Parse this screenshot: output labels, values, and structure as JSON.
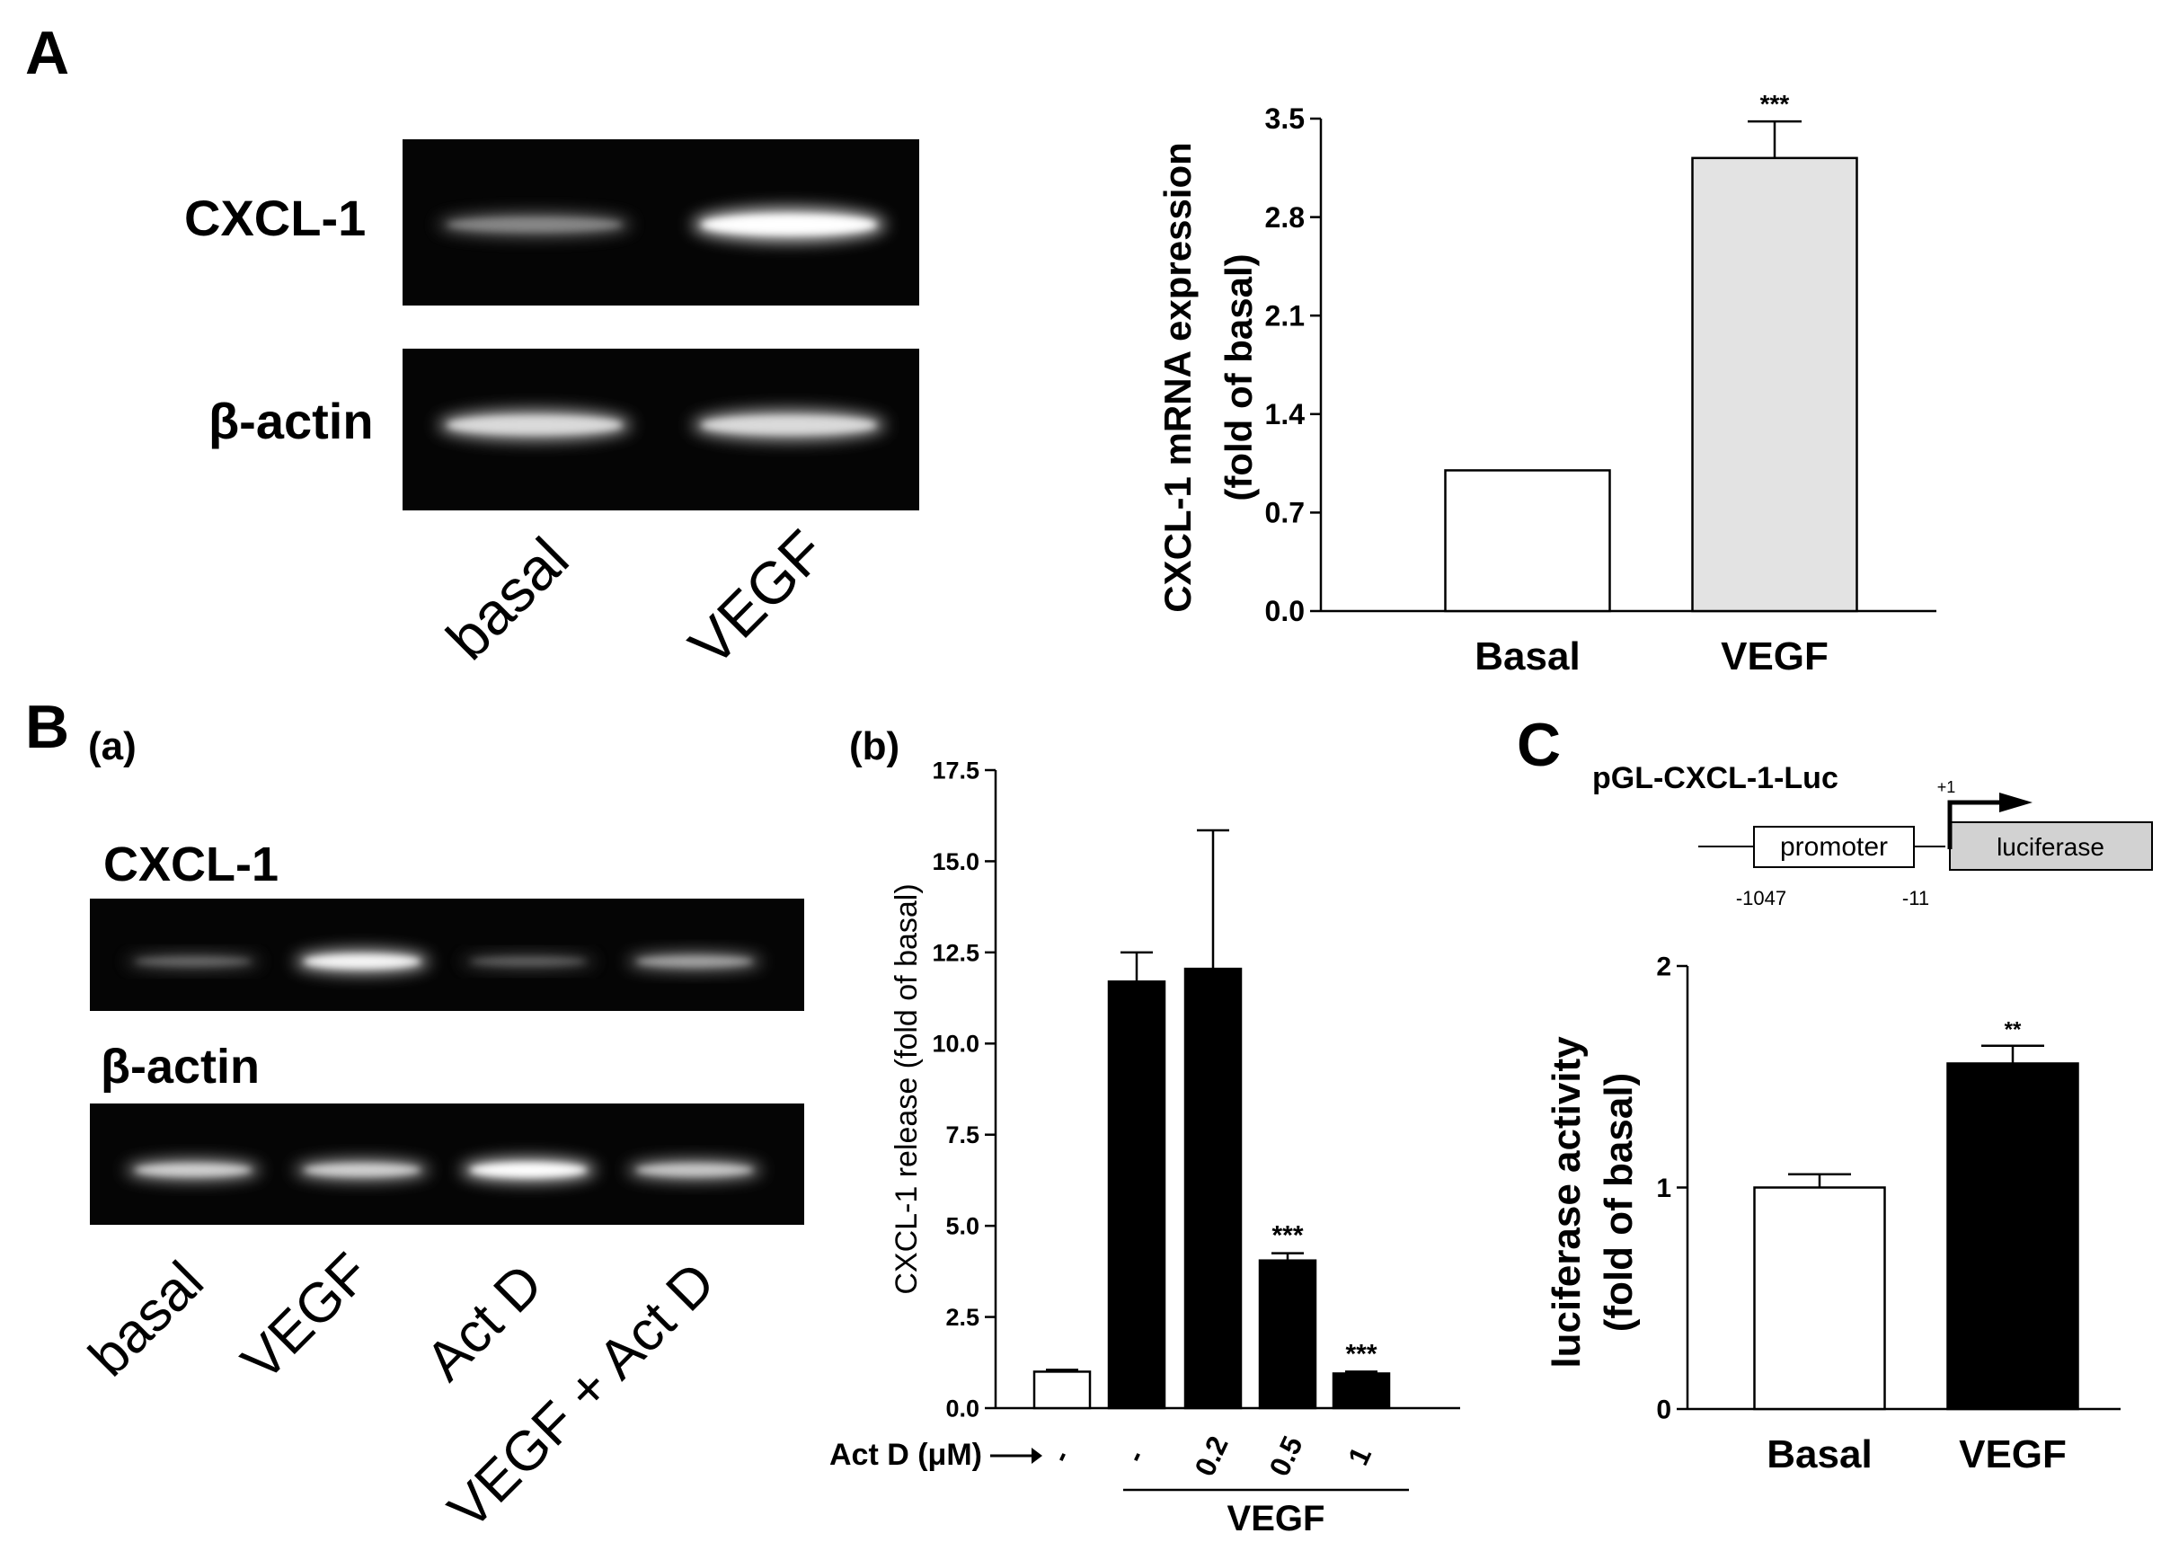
{
  "panels": {
    "A": "A",
    "B": "B",
    "B_a": "(a)",
    "B_b": "(b)",
    "C": "C"
  },
  "gels": {
    "A": {
      "rows": [
        "CXCL-1",
        "β-actin"
      ],
      "lanes": [
        "basal",
        "VEGF"
      ],
      "band_intensity": {
        "CXCL-1": [
          0.35,
          1.0
        ],
        "β-actin": [
          0.8,
          0.8
        ]
      }
    },
    "B": {
      "rows": [
        "CXCL-1",
        "β-actin"
      ],
      "lanes": [
        "basal",
        "VEGF",
        "Act D",
        "VEGF + Act D"
      ],
      "band_intensity": {
        "CXCL-1": [
          0.2,
          0.95,
          0.15,
          0.5
        ],
        "β-actin": [
          0.75,
          0.75,
          1.0,
          0.7
        ]
      }
    }
  },
  "promoter_diagram": {
    "title": "pGL-CXCL-1-Luc",
    "promoter": "promoter",
    "luciferase": "luciferase",
    "start": "+1",
    "pos1": "-1047",
    "pos2": "-11"
  },
  "chart_data": [
    {
      "id": "A",
      "type": "bar",
      "categories": [
        "Basal",
        "VEGF"
      ],
      "values": [
        1.0,
        3.22
      ],
      "errors": [
        0,
        0.26
      ],
      "colors": [
        "#ffffff",
        "#e3e3e3"
      ],
      "significance": [
        "",
        "***"
      ],
      "ylabel_lines": [
        "CXCL-1 mRNA expression",
        "(fold of basal)"
      ],
      "ylim": [
        0,
        3.5
      ],
      "yticks": [
        "0.0",
        "0.7",
        "1.4",
        "2.1",
        "2.8",
        "3.5"
      ]
    },
    {
      "id": "B_b",
      "type": "bar",
      "categories": [
        "-",
        "-",
        "0.2",
        "0.5",
        "1"
      ],
      "values": [
        1.0,
        11.7,
        12.05,
        4.05,
        0.95
      ],
      "errors": [
        0.05,
        0.8,
        3.8,
        0.2,
        0.05
      ],
      "colors": [
        "#ffffff",
        "#000000",
        "#000000",
        "#000000",
        "#000000"
      ],
      "significance": [
        "",
        "",
        "",
        "***",
        "***"
      ],
      "ylabel": "CXCL-1 release (fold of basal)",
      "ylim": [
        0,
        17.5
      ],
      "yticks": [
        "0.0",
        "2.5",
        "5.0",
        "7.5",
        "10.0",
        "12.5",
        "15.0",
        "17.5"
      ],
      "row_label": "Act D (μM)",
      "group_label": "VEGF"
    },
    {
      "id": "C",
      "type": "bar",
      "categories": [
        "Basal",
        "VEGF"
      ],
      "values": [
        1.0,
        1.56
      ],
      "errors": [
        0.06,
        0.08
      ],
      "colors": [
        "#ffffff",
        "#000000"
      ],
      "significance": [
        "",
        "**"
      ],
      "ylabel_lines": [
        "luciferase activity",
        "(fold of basal)"
      ],
      "ylim": [
        0,
        2
      ],
      "yticks": [
        "0",
        "1",
        "2"
      ]
    }
  ]
}
